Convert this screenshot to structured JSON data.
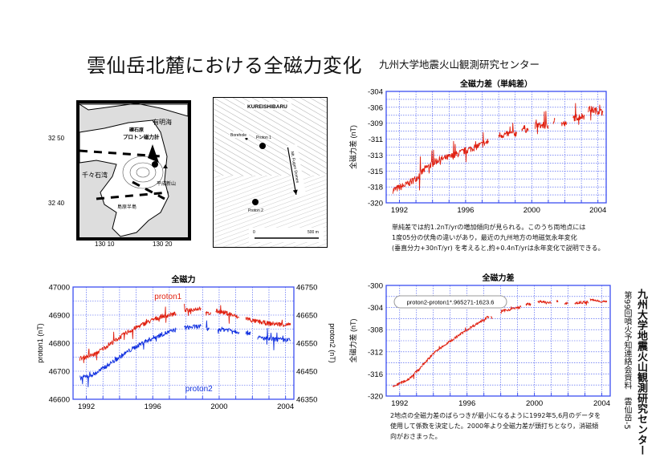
{
  "header": {
    "title": "雲仙岳北麓における全磁力変化",
    "organization": "九州大学地震火山観測研究センター"
  },
  "map_region": {
    "labels": {
      "sea_ariake": "有明海",
      "site": "礫石原",
      "instrument": "プロトン磁力計",
      "bay": "千々石湾",
      "volcano": "平成新山",
      "peninsula": "島原半島"
    },
    "lat_ticks": [
      "32 50",
      "32 40"
    ],
    "lon_ticks": [
      "130 10",
      "130 20"
    ]
  },
  "map_site": {
    "labels": {
      "area": "KUREISHIBARU",
      "borehole": "Borehole",
      "proton1": "Proton 1",
      "proton2": "Proton 2",
      "domes": "Mt. Fugen Domes",
      "scale_zero": "0",
      "scale_end": "500 m"
    }
  },
  "notes": {
    "simple_diff": [
      "単純差では約1.2nT/yrの増加傾向が見られる。このうち両地点には",
      "1度05分の伏角の違いがあり，最近の九州地方の地磁気永年変化",
      "(垂直分力+30nT/yr) を考えると,約+0.4nT/yrは永年変化で説明できる。"
    ],
    "adjusted_diff": [
      "2地点の全磁力差のばらつきが最小になるように1992年5,6月のデータを",
      "使用して係数を決定した。2000年より全磁力差が頭打ちとなり，消磁傾",
      "向がおさまった。"
    ]
  },
  "side": {
    "organization": "九州大学地震火山観測研究センター",
    "meeting": "第99回噴火予知連絡会資料　雲仙岳-5"
  },
  "colors": {
    "grid": "#3b4ff0",
    "red": "#e02010",
    "blue": "#1030e0"
  },
  "chart_data": [
    {
      "id": "simple",
      "type": "line",
      "title": "全磁力差（単純差）",
      "ylabel": "全磁力差 (nT)",
      "xlim": [
        1991.2,
        2004.5
      ],
      "ylim": [
        -320,
        -304
      ],
      "xticks": [
        1992,
        1996,
        2000,
        2004
      ],
      "ytick_labels": [
        "-304",
        "-306",
        "-309",
        "-311",
        "-313",
        "-315",
        "-318",
        "-320"
      ],
      "series": [
        {
          "name": "difference",
          "color": "#e02010",
          "axis": "left",
          "segments": [
            [
              [
                1991.6,
                -318.2
              ],
              [
                1992.5,
                -317.3
              ],
              [
                1993.0,
                -316.5
              ],
              [
                1993.6,
                -315.0
              ],
              [
                1994.3,
                -313.9
              ],
              [
                1995.2,
                -313.3
              ],
              [
                1996.0,
                -312.5
              ],
              [
                1996.8,
                -311.8
              ],
              [
                1997.4,
                -311.2
              ]
            ],
            [
              [
                1998.0,
                -310.3
              ],
              [
                1999.1,
                -310.0
              ]
            ],
            [
              [
                1999.4,
                -309.2
              ],
              [
                1999.8,
                -309.6
              ]
            ],
            [
              [
                2000.2,
                -308.9
              ],
              [
                2001.0,
                -308.9
              ]
            ],
            [
              [
                2001.3,
                -308.3
              ],
              [
                2001.4,
                -308.0
              ]
            ],
            [
              [
                2001.8,
                -308.6
              ],
              [
                2002.1,
                -308.8
              ]
            ],
            [
              [
                2002.5,
                -307.8
              ],
              [
                2003.2,
                -307.5
              ]
            ],
            [
              [
                2003.4,
                -306.5
              ],
              [
                2004.3,
                -307.0
              ]
            ]
          ]
        }
      ]
    },
    {
      "id": "total",
      "type": "line",
      "title": "全磁力",
      "ylabel": "proton1 (nT)",
      "ylabel_right": "proton2 (nT)",
      "xlim": [
        1991.2,
        2004.5
      ],
      "ylim": [
        46600,
        47000
      ],
      "ylim_right": [
        46350,
        46750
      ],
      "xticks": [
        1992,
        1996,
        2000,
        2004
      ],
      "ytick_labels": [
        "47000",
        "46900",
        "46800",
        "46700",
        "46600"
      ],
      "ytick_labels_right": [
        "46750",
        "46650",
        "46550",
        "46450",
        "46350"
      ],
      "series": [
        {
          "name": "proton1",
          "color": "#e02010",
          "axis": "left",
          "segments": [
            [
              [
                1991.6,
                46745
              ],
              [
                1992.5,
                46760
              ],
              [
                1993.5,
                46800
              ],
              [
                1994.5,
                46840
              ],
              [
                1995.5,
                46870
              ],
              [
                1996.5,
                46895
              ],
              [
                1997.4,
                46905
              ]
            ],
            [
              [
                1997.9,
                46915
              ],
              [
                1998.9,
                46925
              ]
            ],
            [
              [
                1999.2,
                46905
              ],
              [
                1999.5,
                46905
              ]
            ],
            [
              [
                1999.8,
                46915
              ],
              [
                2000.6,
                46905
              ],
              [
                2001.2,
                46890
              ]
            ],
            [
              [
                2001.6,
                46890
              ],
              [
                2002.0,
                46880
              ],
              [
                2003.0,
                46870
              ],
              [
                2004.3,
                46865
              ]
            ]
          ]
        },
        {
          "name": "proton2",
          "color": "#1030e0",
          "axis": "right",
          "segments": [
            [
              [
                1991.6,
                46425
              ],
              [
                1992.5,
                46440
              ],
              [
                1993.5,
                46480
              ],
              [
                1994.5,
                46520
              ],
              [
                1995.5,
                46555
              ],
              [
                1996.5,
                46580
              ],
              [
                1997.4,
                46598
              ]
            ],
            [
              [
                1997.9,
                46605
              ],
              [
                1998.9,
                46610
              ]
            ],
            [
              [
                1999.2,
                46600
              ],
              [
                1999.4,
                46600
              ]
            ],
            [
              [
                1999.9,
                46600
              ],
              [
                2000.6,
                46598
              ],
              [
                2001.2,
                46590
              ]
            ],
            [
              [
                2001.6,
                46585
              ],
              [
                2001.9,
                46588
              ]
            ],
            [
              [
                2002.3,
                46570
              ],
              [
                2003.0,
                46565
              ],
              [
                2004.3,
                46560
              ]
            ]
          ]
        }
      ],
      "legend": [
        {
          "label": "proton1",
          "color": "#e02010",
          "position": "top-center"
        },
        {
          "label": "proton2",
          "color": "#1030e0",
          "position": "bottom-center"
        }
      ]
    },
    {
      "id": "adjusted",
      "type": "line",
      "title": "全磁力差",
      "ylabel": "全磁力差 (nT)",
      "xlim": [
        1991.2,
        2004.5
      ],
      "ylim": [
        -320,
        -300
      ],
      "xticks": [
        1992,
        1996,
        2000,
        2004
      ],
      "ytick_labels": [
        "-300",
        "-304",
        "-308",
        "-312",
        "-316",
        "-320"
      ],
      "formula": "proton2-proton1*.965271-1623.6",
      "series": [
        {
          "name": "adjusted difference",
          "color": "#e02010",
          "axis": "left",
          "segments": [
            [
              [
                1991.6,
                -318.3
              ],
              [
                1992.5,
                -317.0
              ],
              [
                1993.0,
                -315.6
              ],
              [
                1994.0,
                -312.3
              ],
              [
                1995.0,
                -310.1
              ],
              [
                1996.0,
                -308.0
              ],
              [
                1997.3,
                -305.6
              ]
            ],
            [
              [
                1997.4,
                -305.8
              ],
              [
                1997.5,
                -305.9
              ]
            ],
            [
              [
                1998.0,
                -304.7
              ],
              [
                1999.2,
                -303.9
              ]
            ],
            [
              [
                1999.5,
                -303.4
              ],
              [
                1999.8,
                -303.4
              ]
            ],
            [
              [
                2000.2,
                -302.9
              ],
              [
                2001.0,
                -303.2
              ]
            ],
            [
              [
                2001.3,
                -302.9
              ],
              [
                2001.4,
                -303.0
              ]
            ],
            [
              [
                2001.8,
                -303.2
              ],
              [
                2002.0,
                -303.2
              ]
            ],
            [
              [
                2002.4,
                -303.2
              ],
              [
                2003.2,
                -303.0
              ]
            ],
            [
              [
                2003.3,
                -302.6
              ],
              [
                2004.3,
                -303.0
              ]
            ]
          ]
        }
      ]
    }
  ]
}
